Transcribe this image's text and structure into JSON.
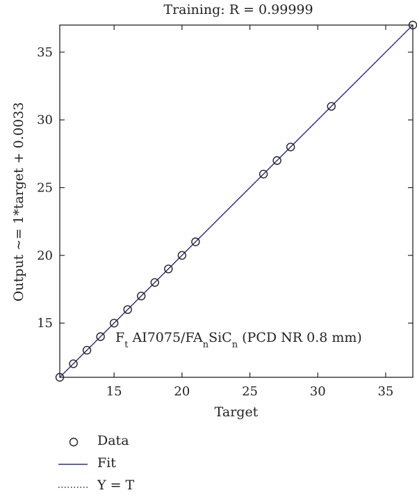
{
  "chart_data": {
    "type": "scatter",
    "title": "Training: R = 0.99999",
    "xlabel": "Target",
    "ylabel": "Output ~= 1*target + 0.0033",
    "xlim": [
      11,
      37
    ],
    "ylim": [
      11,
      37
    ],
    "xticks": [
      15,
      20,
      25,
      30,
      35
    ],
    "yticks": [
      15,
      20,
      25,
      30,
      35
    ],
    "annotation": {
      "base1": "F",
      "sub1": "t",
      "base2": " AI7075/FA",
      "sub2": "n",
      "base3": "SiC",
      "sub3": "n",
      "tail": " (PCD NR 0.8 mm)"
    },
    "series": [
      {
        "name": "Data",
        "x": [
          11,
          12,
          13,
          14,
          15,
          16,
          17,
          18,
          19,
          20,
          21,
          26,
          27,
          28,
          31,
          37
        ],
        "y": [
          11,
          12,
          13,
          14,
          15,
          16,
          17,
          18,
          19,
          20,
          21,
          26,
          27,
          28,
          31,
          37
        ]
      },
      {
        "name": "Fit",
        "slope": 1,
        "intercept": 0.0033,
        "color": "#2e2e8a"
      },
      {
        "name": "Y = T",
        "slope": 1,
        "intercept": 0,
        "color": "#222222"
      }
    ],
    "legend": {
      "position": "bottom-left",
      "items": [
        "Data",
        "Fit",
        "Y = T"
      ]
    }
  }
}
